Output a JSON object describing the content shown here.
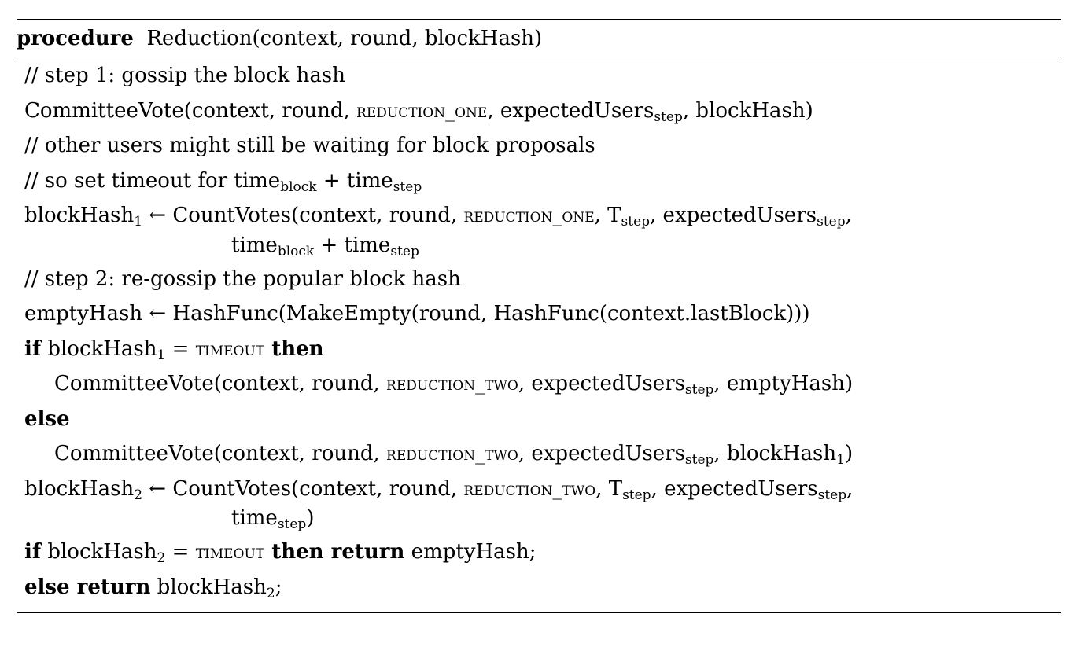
{
  "header": {
    "keyword": "procedure",
    "signature": "Reduction(context, round, blockHash)"
  },
  "lines": {
    "l1": "// step 1: gossip the block hash",
    "l2_a": "CommitteeVote(context, round, ",
    "l2_sc": "reduction_one",
    "l2_b": ", expectedUsers",
    "l2_sub": "step",
    "l2_c": ", blockHash)",
    "l3": "// other users might still be waiting for block proposals",
    "l4_a": "// so set timeout for time",
    "l4_sub1": "block",
    "l4_b": " + time",
    "l4_sub2": "step",
    "l5_a": "blockHash",
    "l5_sub1": "1",
    "l5_b": " ← CountVotes(context, round, ",
    "l5_sc": "reduction_one",
    "l5_c": ", T",
    "l5_sub2": "step",
    "l5_d": ", expectedUsers",
    "l5_sub3": "step",
    "l5_e": ",",
    "l6_a": "time",
    "l6_sub1": "block",
    "l6_b": " + time",
    "l6_sub2": "step",
    "l7": "// step 2: re-gossip the popular block hash",
    "l8": "emptyHash ← HashFunc(MakeEmpty(round, HashFunc(context.lastBlock)))",
    "l9_kw1": "if",
    "l9_a": " blockHash",
    "l9_sub": "1",
    "l9_b": " = ",
    "l9_sc": "timeout",
    "l9_kw2": " then",
    "l10_a": "CommitteeVote(context, round, ",
    "l10_sc": "reduction_two",
    "l10_b": ", expectedUsers",
    "l10_sub": "step",
    "l10_c": ", emptyHash)",
    "l11_kw": "else",
    "l12_a": "CommitteeVote(context, round, ",
    "l12_sc": "reduction_two",
    "l12_b": ", expectedUsers",
    "l12_sub1": "step",
    "l12_c": ", blockHash",
    "l12_sub2": "1",
    "l12_d": ")",
    "l13_a": "blockHash",
    "l13_sub1": "2",
    "l13_b": " ← CountVotes(context, round, ",
    "l13_sc": "reduction_two",
    "l13_c": ", T",
    "l13_sub2": "step",
    "l13_d": ", expectedUsers",
    "l13_sub3": "step",
    "l13_e": ",",
    "l14_a": "time",
    "l14_sub": "step",
    "l14_b": ")",
    "l15_kw1": "if",
    "l15_a": " blockHash",
    "l15_sub": "2",
    "l15_b": " = ",
    "l15_sc": "timeout",
    "l15_kw2": " then return",
    "l15_c": " emptyHash;",
    "l16_kw": "else return",
    "l16_a": " blockHash",
    "l16_sub": "2",
    "l16_b": ";"
  }
}
